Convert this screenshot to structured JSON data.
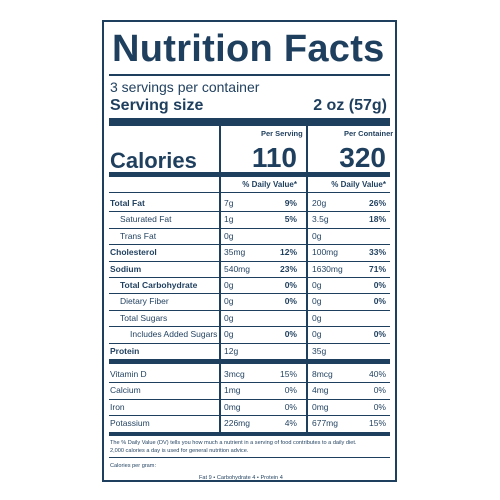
{
  "title": "Nutrition Facts",
  "servings_per_container": "3 servings per container",
  "serving_size_label": "Serving size",
  "serving_size_value": "2 oz (57g)",
  "col_per_serving": "Per Serving",
  "col_per_container": "Per Container",
  "calories_label": "Calories",
  "calories_serving": "110",
  "calories_container": "320",
  "dv_header": "% Daily Value*",
  "nutrients": [
    {
      "label": "Total Fat",
      "bold": true,
      "indent": 0,
      "s_amt": "7g",
      "s_dv": "9%",
      "c_amt": "20g",
      "c_dv": "26%",
      "dv_bold": true
    },
    {
      "label": "Saturated Fat",
      "bold": false,
      "indent": 1,
      "s_amt": "1g",
      "s_dv": "5%",
      "c_amt": "3.5g",
      "c_dv": "18%",
      "dv_bold": true
    },
    {
      "label": "Trans Fat",
      "bold": false,
      "indent": 1,
      "s_amt": "0g",
      "s_dv": "",
      "c_amt": "0g",
      "c_dv": "",
      "dv_bold": true
    },
    {
      "label": "Cholesterol",
      "bold": true,
      "indent": 0,
      "s_amt": "35mg",
      "s_dv": "12%",
      "c_amt": "100mg",
      "c_dv": "33%",
      "dv_bold": true
    },
    {
      "label": "Sodium",
      "bold": true,
      "indent": 0,
      "s_amt": "540mg",
      "s_dv": "23%",
      "c_amt": "1630mg",
      "c_dv": "71%",
      "dv_bold": true
    },
    {
      "label": "Total Carbohydrate",
      "bold": true,
      "indent": 1,
      "s_amt": "0g",
      "s_dv": "0%",
      "c_amt": "0g",
      "c_dv": "0%",
      "dv_bold": true
    },
    {
      "label": "Dietary Fiber",
      "bold": false,
      "indent": 1,
      "s_amt": "0g",
      "s_dv": "0%",
      "c_amt": "0g",
      "c_dv": "0%",
      "dv_bold": true
    },
    {
      "label": "Total Sugars",
      "bold": false,
      "indent": 1,
      "s_amt": "0g",
      "s_dv": "",
      "c_amt": "0g",
      "c_dv": "",
      "dv_bold": true
    },
    {
      "label": "Includes Added Sugars",
      "bold": false,
      "indent": 2,
      "s_amt": "0g",
      "s_dv": "0%",
      "c_amt": "0g",
      "c_dv": "0%",
      "dv_bold": true
    },
    {
      "label": "Protein",
      "bold": true,
      "indent": 0,
      "s_amt": "12g",
      "s_dv": "",
      "c_amt": "35g",
      "c_dv": "",
      "dv_bold": true
    }
  ],
  "vitamins": [
    {
      "label": "Vitamin D",
      "s_amt": "3mcg",
      "s_dv": "15%",
      "c_amt": "8mcg",
      "c_dv": "40%"
    },
    {
      "label": "Calcium",
      "s_amt": "1mg",
      "s_dv": "0%",
      "c_amt": "4mg",
      "c_dv": "0%"
    },
    {
      "label": "Iron",
      "s_amt": "0mg",
      "s_dv": "0%",
      "c_amt": "0mg",
      "c_dv": "0%"
    },
    {
      "label": "Potassium",
      "s_amt": "226mg",
      "s_dv": "4%",
      "c_amt": "677mg",
      "c_dv": "15%"
    }
  ],
  "footnote_line1": "The % Daily Value (DV) tells you how much a nutrient in a serving of food contributes to a daily diet.",
  "footnote_line2": "2,000 calories a day is used for general nutrition advice.",
  "calories_per_gram_label": "Calories per gram:",
  "calories_per_gram": "Fat 9  •  Carbohydrate 4  •  Protein 4",
  "colors": {
    "ink": "#1f3f5e",
    "background": "#ffffff"
  }
}
